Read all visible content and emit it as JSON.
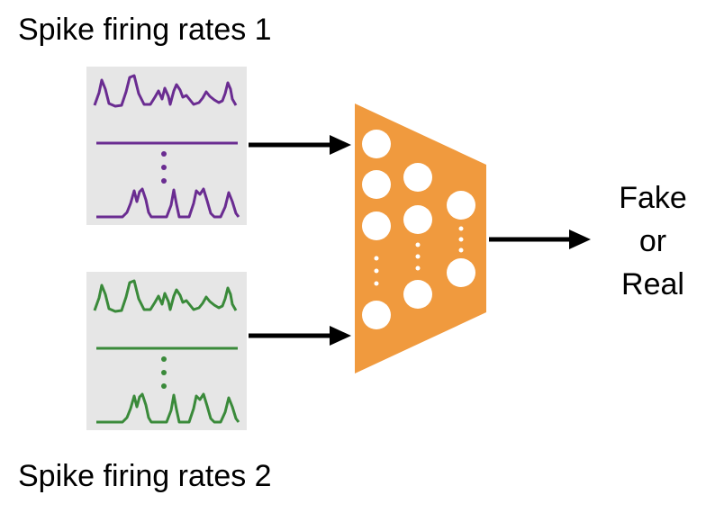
{
  "labels": {
    "input_top": "Spike firing rates 1",
    "input_bottom": "Spike firing rates 2",
    "output_line1": "Fake",
    "output_line2": "or",
    "output_line3": "Real"
  },
  "colors": {
    "panel_bg": "#e6e6e6",
    "series_1": "#6a2c91",
    "series_2": "#3a8a3a",
    "network": "#f09a3e",
    "node": "#ffffff",
    "arrow": "#000000"
  }
}
